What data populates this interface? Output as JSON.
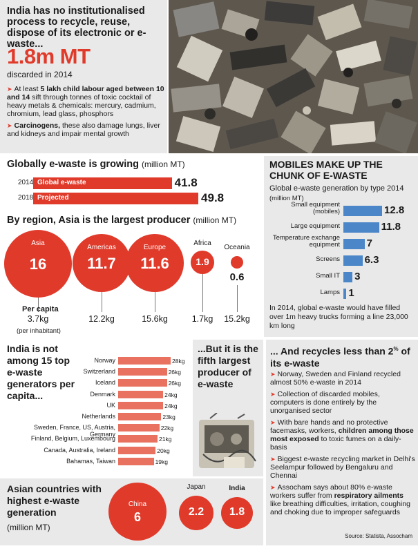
{
  "intro": {
    "headline": "India has no institutionalised process to recycle, reuse, dispose of its electronic or e-waste...",
    "big_number": "1.8m MT",
    "big_sub": "discarded in 2014",
    "bullet1_pre": "At least ",
    "bullet1_bold": "5 lakh child labour aged between 10 and 14",
    "bullet1_post": " sift through tonnes of toxic cocktail of heavy metals & chemicals: mercury, cadmium, chromium, lead glass, phosphors",
    "bullet2_bold": "Carcinogens,",
    "bullet2_post": " these also damage lungs, liver and kidneys and impair mental growth",
    "photo_alt": "pile-of-e-waste-photo"
  },
  "global": {
    "title": "Globally e-waste is growing",
    "unit": "(million MT)"
  },
  "region": {
    "title": "By region, Asia is the largest producer",
    "unit": "(million MT)",
    "per_capita_title": "Per capita",
    "per_capita_sub": "(per inhabitant)"
  },
  "mobiles": {
    "title": "MOBILES MAKE UP THE CHUNK OF E-WASTE",
    "subtitle": "Global e-waste generation by type 2014",
    "unit": "(million MT)",
    "note": "In 2014, global e-waste would have filled over 1m heavy trucks forming a line 23,000 km long"
  },
  "india_rank": {
    "title": "India is not among 15 top e-waste generators per capita..."
  },
  "fifth": {
    "title": "...But it is the fifth largest producer of e-waste"
  },
  "recycles": {
    "title_pre": "... And recycles less than 2",
    "title_sup": "%",
    "title_post": " of its e-waste",
    "b1": "Norway, Sweden and Finland recycled almost 50% e-waste in 2014",
    "b2": "Collection of discarded mobiles, computers is done entirely by the unorganised sector",
    "b3_pre": "With bare hands and no protective facemasks, workers, ",
    "b3_bold": "children among those most exposed",
    "b3_post": " to toxic fumes on a daily-basis",
    "b4": "Biggest e-waste recycling market in Delhi's Seelampur followed by Bengaluru and Chennai",
    "b5_pre": "Assocham says about 80% e-waste workers suffer from ",
    "b5_bold": "respiratory ailments",
    "b5_post": " like breathing difficulties, irritation, coughing and choking due to improper safeguards",
    "source": "Source: Statista, Assocham"
  },
  "asian": {
    "title": "Asian countries with highest e-waste generation",
    "unit": "(million MT)"
  },
  "colors": {
    "accent": "#e03a2b",
    "blue_bar": "#4a86c8",
    "panel": "#e9e9e9"
  },
  "chart_data": [
    {
      "type": "bar",
      "title": "Globally e-waste is growing",
      "categories": [
        "2014",
        "2018"
      ],
      "bar_labels": [
        "Global e-waste",
        "Projected"
      ],
      "values": [
        41.8,
        49.8
      ],
      "value_labels": [
        "41.8",
        "49.8"
      ]
    },
    {
      "type": "bubble",
      "title": "By region, Asia is the largest producer",
      "categories": [
        "Asia",
        "Americas",
        "Europe",
        "Africa",
        "Oceania"
      ],
      "values": [
        16,
        11.7,
        11.6,
        1.9,
        0.6
      ],
      "value_labels": [
        "16",
        "11.7",
        "11.6",
        "1.9",
        "0.6"
      ],
      "per_capita_labels": [
        "3.7kg",
        "12.2kg",
        "15.6kg",
        "1.7kg",
        "15.2kg"
      ]
    },
    {
      "type": "bar",
      "title": "Global e-waste generation by type 2014",
      "categories": [
        "Small equipment (mobiles)",
        "Large equipment",
        "Temperature exchange equipment",
        "Screens",
        "Small IT",
        "Lamps"
      ],
      "values": [
        12.8,
        11.8,
        7,
        6.3,
        3,
        1
      ],
      "value_labels": [
        "12.8",
        "11.8",
        "7",
        "6.3",
        "3",
        "1"
      ]
    },
    {
      "type": "bar",
      "title": "top e-waste generators per capita",
      "categories": [
        "Norway",
        "Switzerland",
        "Iceland",
        "Denmark",
        "UK",
        "Netherlands",
        "Sweden, France, US, Austria, Germany",
        "Finland, Belgium, Luxembourg",
        "Canada, Australia, Ireland",
        "Bahamas, Taiwan"
      ],
      "values": [
        28,
        26,
        26,
        24,
        24,
        23,
        22,
        21,
        20,
        19
      ],
      "value_labels": [
        "28kg",
        "26kg",
        "26kg",
        "24kg",
        "24kg",
        "23kg",
        "22kg",
        "21kg",
        "20kg",
        "19kg"
      ]
    },
    {
      "type": "bubble",
      "title": "Asian countries with highest e-waste generation",
      "categories": [
        "China",
        "Japan",
        "India"
      ],
      "values": [
        6,
        2.2,
        1.8
      ],
      "value_labels": [
        "6",
        "2.2",
        "1.8"
      ]
    }
  ]
}
